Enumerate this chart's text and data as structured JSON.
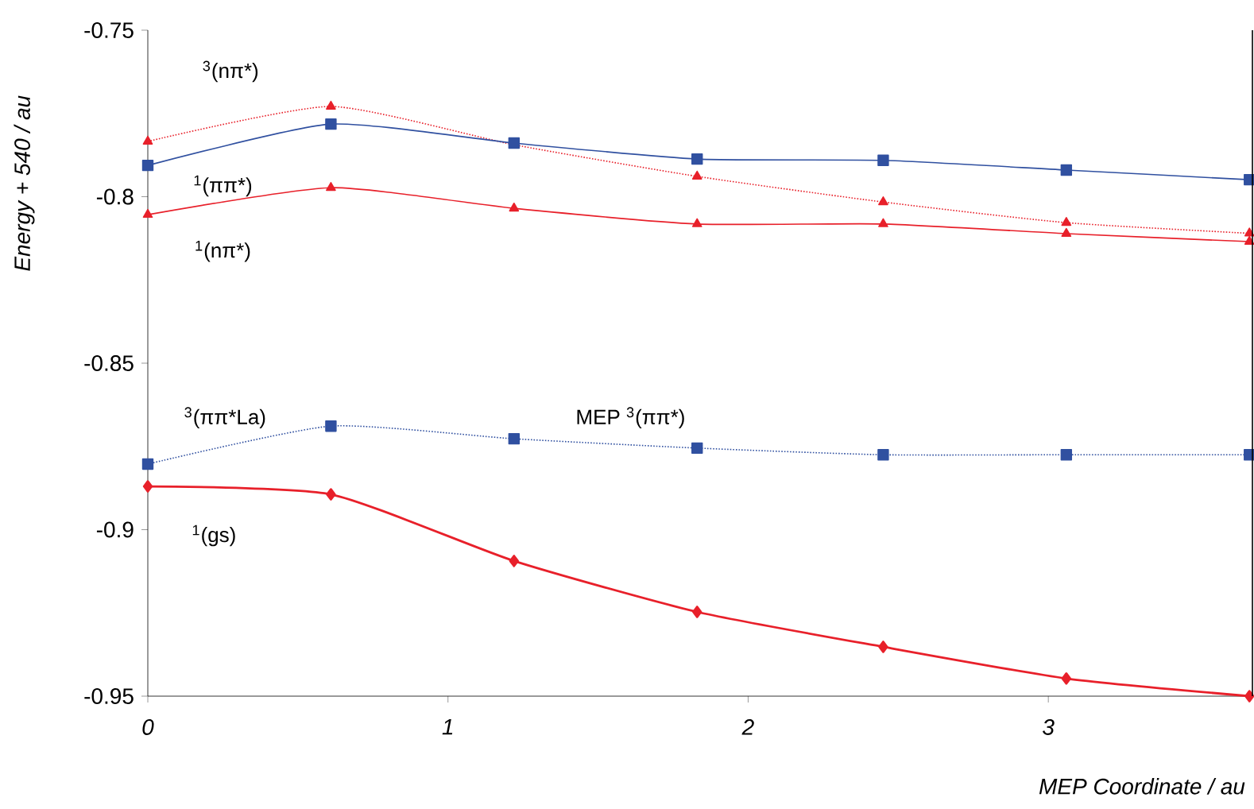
{
  "chart_data": {
    "type": "line",
    "xlabel": "MEP Coordinate / au",
    "ylabel": "Energy + 540 / au",
    "x": [
      0,
      0.61,
      1.22,
      1.83,
      2.45,
      3.06,
      3.67
    ],
    "xlim": [
      0,
      3.68
    ],
    "xticks": [
      0,
      1,
      2,
      3
    ],
    "ylim": [
      -0.95,
      -0.75
    ],
    "yticks": [
      -0.95,
      -0.9,
      -0.85,
      -0.8,
      -0.75
    ],
    "grid": false,
    "series": [
      {
        "color": "#e8202a",
        "marker": "triangle",
        "line_style": "dotted",
        "values": [
          -0.7834,
          -0.7729,
          -0.7844,
          -0.7939,
          -0.8016,
          -0.8078,
          -0.811
        ]
      },
      {
        "color": "#3050a0",
        "marker": "square",
        "line_style": "solid",
        "values": [
          -0.7906,
          -0.7782,
          -0.7839,
          -0.7887,
          -0.7891,
          -0.792,
          -0.7949
        ]
      },
      {
        "color": "#e8202a",
        "marker": "triangle",
        "line_style": "solid",
        "values": [
          -0.8054,
          -0.7973,
          -0.8035,
          -0.8082,
          -0.8082,
          -0.8111,
          -0.8135
        ]
      },
      {
        "color": "#3050a0",
        "marker": "square",
        "line_style": "dotted",
        "values": [
          -0.8803,
          -0.8689,
          -0.8727,
          -0.8755,
          -0.8775,
          -0.8775,
          -0.8775
        ]
      },
      {
        "color": "#e8202a",
        "marker": "diamond",
        "line_style": "solid",
        "values": [
          -0.887,
          -0.8894,
          -0.9094,
          -0.9247,
          -0.9352,
          -0.9447,
          -0.95
        ]
      }
    ],
    "annotations": [
      "$^{3}$(nπ*)",
      "$^{1}$(ππ*)",
      "$^{1}$(nπ*)",
      "$^{3}$(ππ*La)",
      "MEP $^{3}$(ππ*)",
      "$^{1}$(gs)"
    ]
  }
}
